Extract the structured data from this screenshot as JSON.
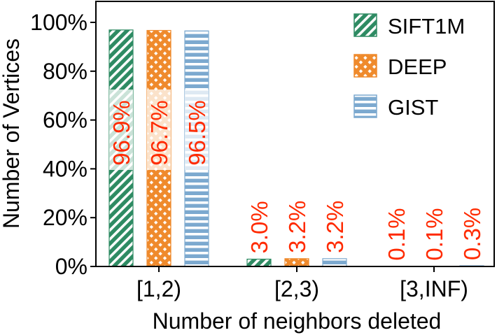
{
  "chart_data": {
    "type": "bar",
    "xlabel": "Number of neighbors deleted",
    "ylabel": "Number of Vertices",
    "categories": [
      "[1,2)",
      "[2,3)",
      "[3,INF)"
    ],
    "ylim": [
      0,
      100
    ],
    "yticks": [
      0,
      20,
      40,
      60,
      80,
      100
    ],
    "ytick_labels": [
      "0%",
      "20%",
      "40%",
      "60%",
      "80%",
      "100%"
    ],
    "series": [
      {
        "name": "SIFT1M",
        "values": [
          96.9,
          3.0,
          0.1
        ],
        "labels": [
          "96.9%",
          "3.0%",
          "0.1%"
        ],
        "color": "#2e8b63",
        "pattern": "diagonal"
      },
      {
        "name": "DEEP",
        "values": [
          96.7,
          3.2,
          0.1
        ],
        "labels": [
          "96.7%",
          "3.2%",
          "0.1%"
        ],
        "color": "#ef8a2c",
        "pattern": "crosshatch"
      },
      {
        "name": "GIST",
        "values": [
          96.5,
          3.2,
          0.3
        ],
        "labels": [
          "96.5%",
          "3.2%",
          "0.3%"
        ],
        "color": "#7ca9cf",
        "pattern": "horizontal"
      }
    ],
    "data_label_color": "#ff2a00",
    "legend_position": "top-right",
    "grid": false
  }
}
